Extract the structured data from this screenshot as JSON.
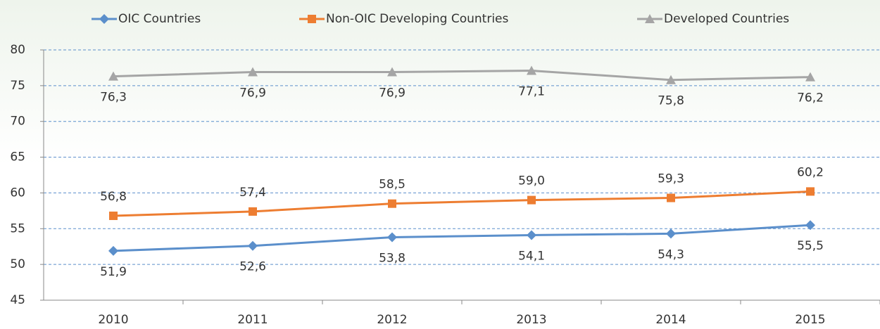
{
  "chart_data": {
    "type": "line",
    "categories": [
      "2010",
      "2011",
      "2012",
      "2013",
      "2014",
      "2015"
    ],
    "series": [
      {
        "name": "OIC Countries",
        "color": "#5b8fcb",
        "marker": "diamond",
        "values": [
          51.9,
          52.6,
          53.8,
          54.1,
          54.3,
          55.5
        ],
        "value_labels": [
          "51,9",
          "52,6",
          "53,8",
          "54,1",
          "54,3",
          "55,5"
        ]
      },
      {
        "name": "Non-OIC Developing Countries",
        "color": "#ed7d31",
        "marker": "square",
        "values": [
          56.8,
          57.4,
          58.5,
          59.0,
          59.3,
          60.2
        ],
        "value_labels": [
          "56,8",
          "57,4",
          "58,5",
          "59,0",
          "59,3",
          "60,2"
        ]
      },
      {
        "name": "Developed Countries",
        "color": "#a5a5a5",
        "marker": "triangle",
        "values": [
          76.3,
          76.9,
          76.9,
          77.1,
          75.8,
          76.2
        ],
        "value_labels": [
          "76,3",
          "76,9",
          "76,9",
          "77,1",
          "75,8",
          "76,2"
        ]
      }
    ],
    "ylim": [
      45,
      80
    ],
    "yticks": [
      45,
      50,
      55,
      60,
      65,
      70,
      75,
      80
    ],
    "grid": true,
    "legend": "top"
  }
}
